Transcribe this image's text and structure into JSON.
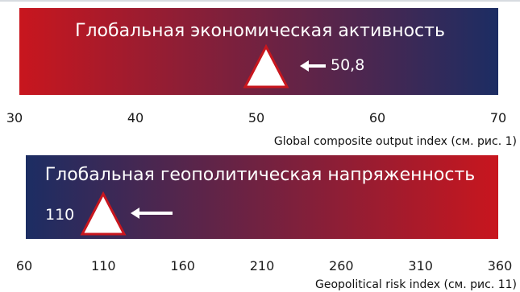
{
  "chart_data": [
    {
      "type": "gauge",
      "title": "Глобальная экономическая активность",
      "value": 50.8,
      "value_label": "50,8",
      "ticks": [
        30,
        40,
        50,
        60,
        70
      ],
      "tick_labels": [
        "30",
        "40",
        "50",
        "60",
        "70"
      ],
      "range": [
        30,
        70
      ],
      "caption": "Global composite output index (см. рис. 1)",
      "gradient": [
        "#c8161e",
        "#1c2d63"
      ]
    },
    {
      "type": "gauge",
      "title": "Глобальная геополитическая напряженность",
      "value": 110,
      "value_label": "110",
      "ticks": [
        60,
        110,
        160,
        210,
        260,
        310,
        360
      ],
      "tick_labels": [
        "60",
        "110",
        "160",
        "210",
        "260",
        "310",
        "360"
      ],
      "range": [
        60,
        360
      ],
      "caption": "Geopolitical risk index (см. рис. 11)",
      "gradient": [
        "#1c2d63",
        "#c8161e"
      ]
    }
  ],
  "colors": {
    "marker_fill": "#ffffff",
    "marker_stroke": "#c8161e",
    "text_on_bar": "#ffffff"
  },
  "icons": {
    "pointer": "arrow-left-icon",
    "marker": "triangle-marker-icon"
  }
}
